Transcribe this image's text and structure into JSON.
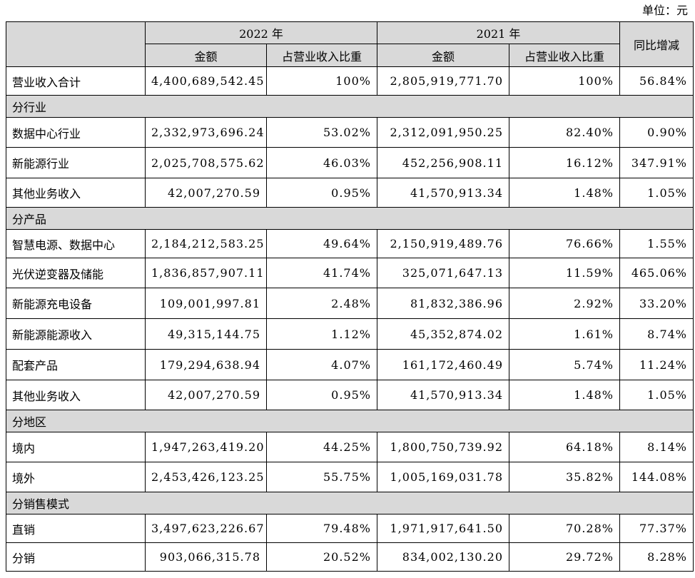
{
  "unit_label": "单位：元",
  "header": {
    "year_2022": "2022 年",
    "year_2021": "2021 年",
    "yoy": "同比增减",
    "amount": "金额",
    "share": "占营业收入比重"
  },
  "total_row": {
    "label": "营业收入合计",
    "amt2022": "4,400,689,542.45",
    "pct2022": "100%",
    "amt2021": "2,805,919,771.70",
    "pct2021": "100%",
    "yoy": "56.84%"
  },
  "sections": [
    {
      "title": "分行业",
      "rows": [
        {
          "label": "数据中心行业",
          "amt2022": "2,332,973,696.24",
          "pct2022": "53.02%",
          "amt2021": "2,312,091,950.25",
          "pct2021": "82.40%",
          "yoy": "0.90%"
        },
        {
          "label": "新能源行业",
          "amt2022": "2,025,708,575.62",
          "pct2022": "46.03%",
          "amt2021": "452,256,908.11",
          "pct2021": "16.12%",
          "yoy": "347.91%"
        },
        {
          "label": "其他业务收入",
          "amt2022": "42,007,270.59",
          "pct2022": "0.95%",
          "amt2021": "41,570,913.34",
          "pct2021": "1.48%",
          "yoy": "1.05%"
        }
      ]
    },
    {
      "title": "分产品",
      "rows": [
        {
          "label": "智慧电源、数据中心",
          "amt2022": "2,184,212,583.25",
          "pct2022": "49.64%",
          "amt2021": "2,150,919,489.76",
          "pct2021": "76.66%",
          "yoy": "1.55%"
        },
        {
          "label": "光伏逆变器及储能",
          "amt2022": "1,836,857,907.11",
          "pct2022": "41.74%",
          "amt2021": "325,071,647.13",
          "pct2021": "11.59%",
          "yoy": "465.06%"
        },
        {
          "label": "新能源充电设备",
          "amt2022": "109,001,997.81",
          "pct2022": "2.48%",
          "amt2021": "81,832,386.96",
          "pct2021": "2.92%",
          "yoy": "33.20%"
        },
        {
          "label": "新能源能源收入",
          "amt2022": "49,315,144.75",
          "pct2022": "1.12%",
          "amt2021": "45,352,874.02",
          "pct2021": "1.61%",
          "yoy": "8.74%"
        },
        {
          "label": "配套产品",
          "amt2022": "179,294,638.94",
          "pct2022": "4.07%",
          "amt2021": "161,172,460.49",
          "pct2021": "5.74%",
          "yoy": "11.24%"
        },
        {
          "label": "其他业务收入",
          "amt2022": "42,007,270.59",
          "pct2022": "0.95%",
          "amt2021": "41,570,913.34",
          "pct2021": "1.48%",
          "yoy": "1.05%"
        }
      ]
    },
    {
      "title": "分地区",
      "rows": [
        {
          "label": "境内",
          "amt2022": "1,947,263,419.20",
          "pct2022": "44.25%",
          "amt2021": "1,800,750,739.92",
          "pct2021": "64.18%",
          "yoy": "8.14%"
        },
        {
          "label": "境外",
          "amt2022": "2,453,426,123.25",
          "pct2022": "55.75%",
          "amt2021": "1,005,169,031.78",
          "pct2021": "35.82%",
          "yoy": "144.08%"
        }
      ]
    },
    {
      "title": "分销售模式",
      "rows": [
        {
          "label": "直销",
          "amt2022": "3,497,623,226.67",
          "pct2022": "79.48%",
          "amt2021": "1,971,917,641.50",
          "pct2021": "70.28%",
          "yoy": "77.37%"
        },
        {
          "label": "分销",
          "amt2022": "903,066,315.78",
          "pct2022": "20.52%",
          "amt2021": "834,002,130.20",
          "pct2021": "29.72%",
          "yoy": "8.28%"
        }
      ]
    }
  ]
}
